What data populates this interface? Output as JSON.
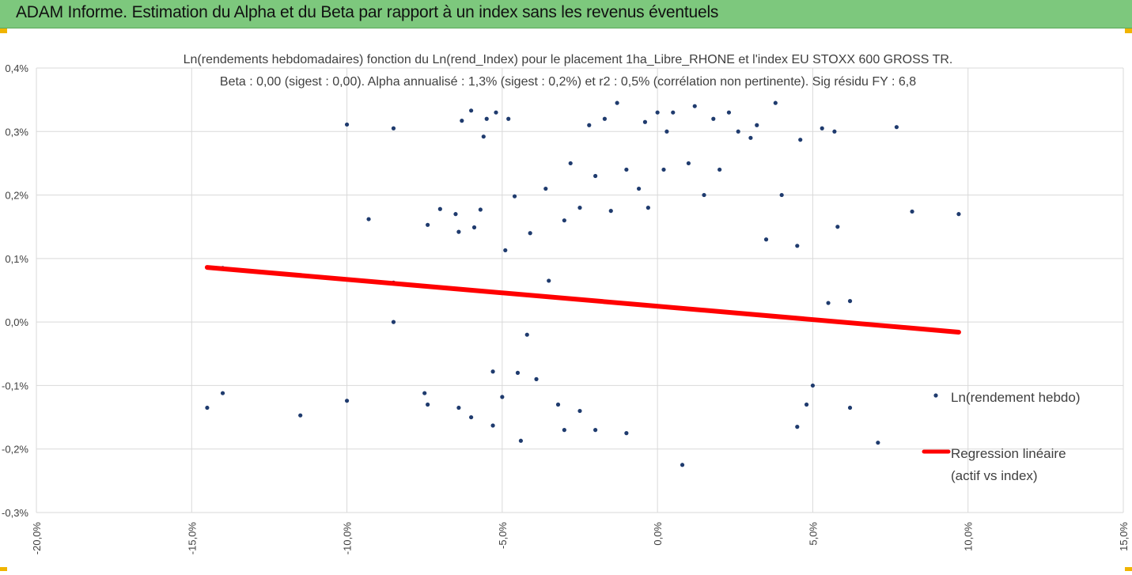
{
  "header": {
    "title": "ADAM Informe. Estimation du Alpha et du Beta par rapport à un index sans les revenus éventuels"
  },
  "colors": {
    "banner": "#7dc87d",
    "points": "#1f3b6e",
    "regression": "#ff0000",
    "grid": "#d9d9d9",
    "corner_accent": "#f0b400"
  },
  "chart_data": {
    "type": "scatter",
    "title": "Ln(rendements hebdomadaires) fonction du Ln(rend_Index) pour le placement 1ha_Libre_RHONE et l'index EU STOXX 600 GROSS TR.",
    "subtitle": "Beta : 0,00 (sigest : 0,00). Alpha annualisé : 1,3% (sigest : 0,2%) et r2 : 0,5% (corrélation non pertinente). Sig résidu FY : 6,8",
    "xlabel": "",
    "ylabel": "",
    "xlim": [
      -20,
      15
    ],
    "ylim": [
      -0.3,
      0.4
    ],
    "x_ticks": [
      -20,
      -15,
      -10,
      -5,
      0,
      5,
      10,
      15
    ],
    "y_ticks": [
      -0.3,
      -0.2,
      -0.1,
      0.0,
      0.1,
      0.2,
      0.3,
      0.4
    ],
    "x_tick_labels": [
      "-20,0%",
      "-15,0%",
      "-10,0%",
      "-5,0%",
      "0,0%",
      "5,0%",
      "10,0%",
      "15,0%"
    ],
    "y_tick_labels": [
      "-0,3%",
      "-0,2%",
      "-0,1%",
      "0,0%",
      "0,1%",
      "0,2%",
      "0,3%",
      "0,4%"
    ],
    "grid": true,
    "legend_position": "right",
    "legend": {
      "scatter_label": "Ln(rendement hebdo)",
      "line_label_1": "Regression linéaire",
      "line_label_2": "(actif vs index)"
    },
    "series": [
      {
        "name": "Ln(rendement hebdo)",
        "type": "scatter",
        "points": [
          [
            -14.5,
            -0.135
          ],
          [
            -14.0,
            -0.112
          ],
          [
            -14.0,
            0.085
          ],
          [
            -11.5,
            -0.147
          ],
          [
            -10.0,
            0.311
          ],
          [
            -10.0,
            -0.124
          ],
          [
            -9.3,
            0.162
          ],
          [
            -8.5,
            0.305
          ],
          [
            -8.5,
            0.0
          ],
          [
            -8.5,
            0.062
          ],
          [
            -7.5,
            -0.112
          ],
          [
            -7.4,
            -0.13
          ],
          [
            -7.4,
            0.153
          ],
          [
            -7.0,
            0.178
          ],
          [
            -6.5,
            0.17
          ],
          [
            -6.4,
            0.142
          ],
          [
            -6.4,
            -0.135
          ],
          [
            -6.3,
            0.317
          ],
          [
            -6.0,
            0.333
          ],
          [
            -6.0,
            -0.15
          ],
          [
            -5.9,
            0.149
          ],
          [
            -5.7,
            0.177
          ],
          [
            -5.6,
            0.292
          ],
          [
            -5.5,
            0.32
          ],
          [
            -5.3,
            -0.078
          ],
          [
            -5.3,
            -0.163
          ],
          [
            -5.2,
            0.33
          ],
          [
            -5.0,
            -0.118
          ],
          [
            -4.9,
            0.113
          ],
          [
            -4.8,
            0.32
          ],
          [
            -4.6,
            0.198
          ],
          [
            -4.5,
            -0.08
          ],
          [
            -4.4,
            -0.187
          ],
          [
            -4.2,
            -0.02
          ],
          [
            -4.1,
            0.14
          ],
          [
            -3.9,
            -0.09
          ],
          [
            -3.6,
            0.21
          ],
          [
            -3.5,
            0.065
          ],
          [
            -3.2,
            -0.13
          ],
          [
            -3.0,
            0.16
          ],
          [
            -3.0,
            -0.17
          ],
          [
            -2.8,
            0.25
          ],
          [
            -2.5,
            0.18
          ],
          [
            -2.5,
            -0.14
          ],
          [
            -2.2,
            0.31
          ],
          [
            -2.0,
            0.23
          ],
          [
            -2.0,
            -0.17
          ],
          [
            -1.7,
            0.32
          ],
          [
            -1.5,
            0.175
          ],
          [
            -1.3,
            0.345
          ],
          [
            -1.0,
            0.24
          ],
          [
            -1.0,
            -0.175
          ],
          [
            -0.6,
            0.21
          ],
          [
            -0.4,
            0.315
          ],
          [
            -0.3,
            0.18
          ],
          [
            0.0,
            0.33
          ],
          [
            0.2,
            0.24
          ],
          [
            0.3,
            0.3
          ],
          [
            0.5,
            0.33
          ],
          [
            0.8,
            -0.225
          ],
          [
            1.0,
            0.25
          ],
          [
            1.2,
            0.34
          ],
          [
            1.5,
            0.2
          ],
          [
            1.8,
            0.32
          ],
          [
            2.0,
            0.24
          ],
          [
            2.3,
            0.33
          ],
          [
            2.6,
            0.3
          ],
          [
            3.0,
            0.29
          ],
          [
            3.2,
            0.31
          ],
          [
            3.5,
            0.13
          ],
          [
            3.8,
            0.345
          ],
          [
            4.0,
            0.2
          ],
          [
            4.5,
            0.12
          ],
          [
            4.5,
            -0.165
          ],
          [
            4.6,
            0.287
          ],
          [
            4.8,
            -0.13
          ],
          [
            5.0,
            -0.1
          ],
          [
            5.3,
            0.305
          ],
          [
            5.5,
            0.03
          ],
          [
            5.7,
            0.3
          ],
          [
            5.8,
            0.15
          ],
          [
            6.2,
            -0.135
          ],
          [
            6.2,
            0.033
          ],
          [
            7.1,
            -0.19
          ],
          [
            7.7,
            0.307
          ],
          [
            8.2,
            0.174
          ],
          [
            9.7,
            0.17
          ]
        ]
      }
    ],
    "regression": {
      "name": "Regression linéaire (actif vs index)",
      "x": [
        -14.5,
        9.7
      ],
      "y": [
        0.086,
        -0.016
      ]
    }
  }
}
